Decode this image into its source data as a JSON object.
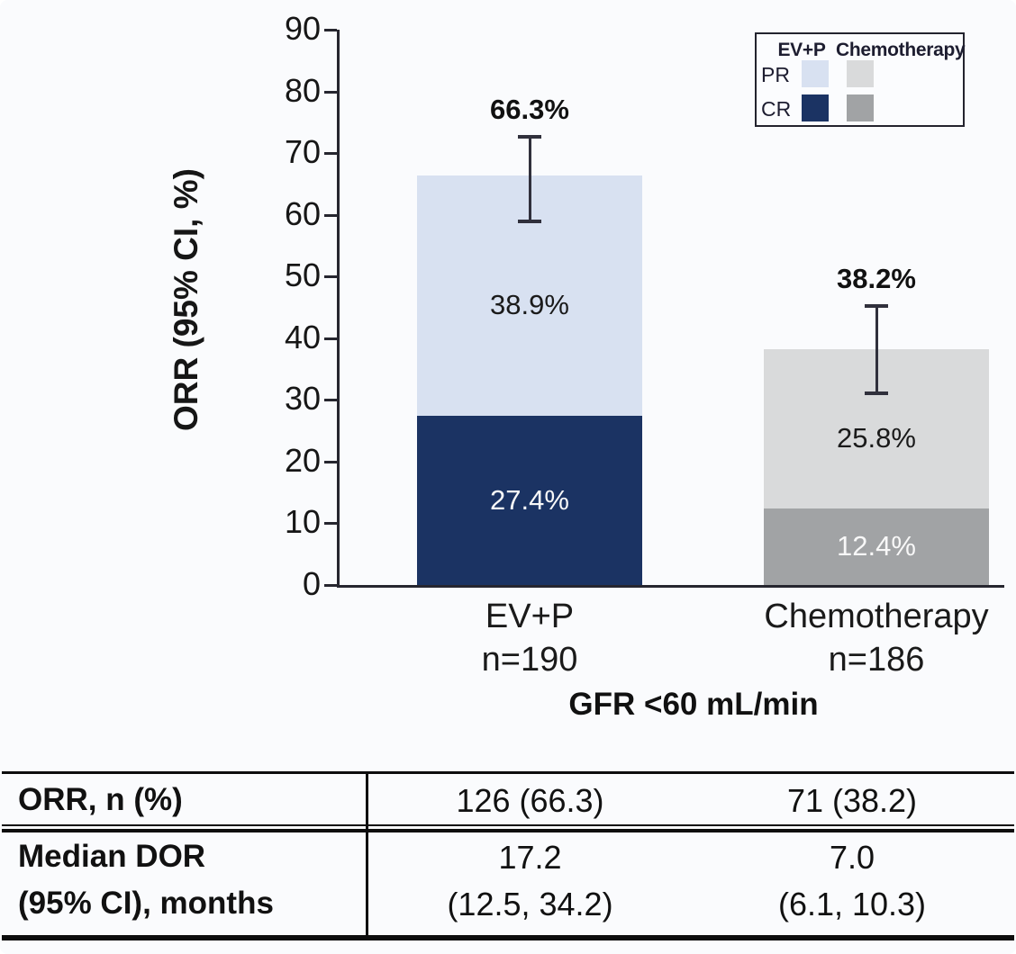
{
  "chart_data": {
    "type": "bar",
    "subtype": "stacked",
    "title": "",
    "ylabel": "ORR (95% CI, %)",
    "xlabel": "GFR <60 mL/min",
    "ylim": [
      0,
      90
    ],
    "ytick_step": 10,
    "grid": false,
    "legend_position": "top-right",
    "categories": [
      "EV+P",
      "Chemotherapy"
    ],
    "group_n_labels": [
      "n=190",
      "n=186"
    ],
    "series": [
      {
        "name": "CR",
        "values": [
          27.4,
          12.4
        ],
        "value_labels": [
          "27.4%",
          "12.4%"
        ],
        "colors": [
          "#1b3363",
          "#a1a3a5"
        ],
        "label_color": "#f8f8f8"
      },
      {
        "name": "PR",
        "values": [
          38.9,
          25.8
        ],
        "value_labels": [
          "38.9%",
          "25.8%"
        ],
        "colors": [
          "#d8e1f1",
          "#d9dadb"
        ],
        "label_color": "#1a1a1a"
      }
    ],
    "totals": [
      66.3,
      38.2
    ],
    "total_labels": [
      "66.3%",
      "38.2%"
    ],
    "error_bars": {
      "low": [
        59.0,
        31.1
      ],
      "high": [
        72.8,
        45.4
      ]
    },
    "legend": {
      "col_headers": [
        "EV+P",
        "Chemotherapy"
      ],
      "row_labels": [
        "PR",
        "CR"
      ]
    }
  },
  "table": {
    "rows": [
      {
        "label_lines": [
          "ORR, n (%)",
          ""
        ],
        "cells": [
          [
            "126 (66.3)",
            ""
          ],
          [
            "71 (38.2)",
            ""
          ]
        ]
      },
      {
        "label_lines": [
          "Median DOR",
          "(95% CI), months"
        ],
        "cells": [
          [
            "17.2",
            "(12.5, 34.2)"
          ],
          [
            "7.0",
            "(6.1, 10.3)"
          ]
        ]
      }
    ]
  }
}
